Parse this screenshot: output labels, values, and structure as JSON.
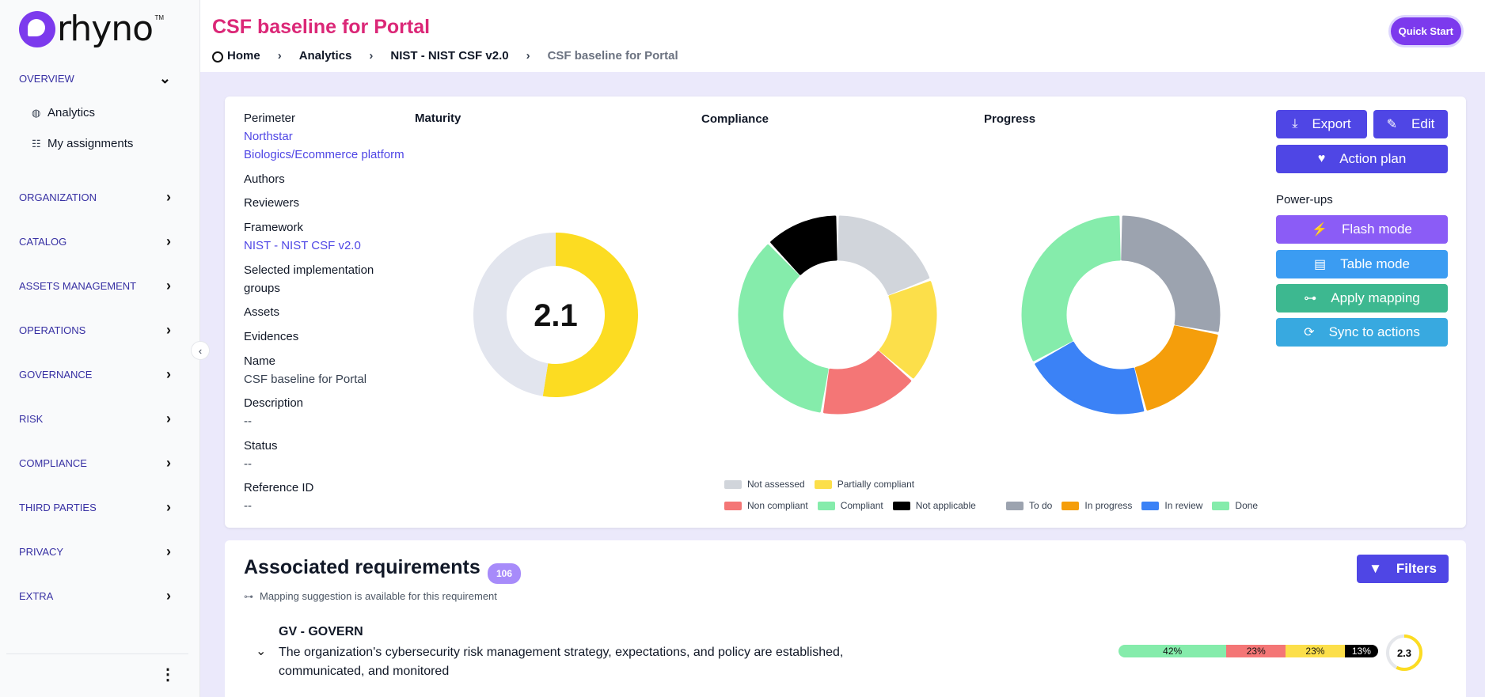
{
  "app": {
    "logo_text": "rhyno",
    "logo_tm": "TM"
  },
  "sidebar": {
    "overview_label": "OVERVIEW",
    "sub_items": [
      {
        "label": "Analytics",
        "icon": "globe-icon"
      },
      {
        "label": "My assignments",
        "icon": "list-check-icon"
      }
    ],
    "sections": [
      "ORGANIZATION",
      "CATALOG",
      "ASSETS MANAGEMENT",
      "OPERATIONS",
      "GOVERNANCE",
      "RISK",
      "COMPLIANCE",
      "THIRD PARTIES",
      "PRIVACY",
      "EXTRA"
    ]
  },
  "header": {
    "title": "CSF baseline for Portal",
    "breadcrumb": [
      "Home",
      "Analytics",
      "NIST - NIST CSF v2.0",
      "CSF baseline for Portal"
    ],
    "quick_start": "Quick Start"
  },
  "details": {
    "perimeter_label": "Perimeter",
    "perimeter_value_line1": "Northstar",
    "perimeter_value_line2": "Biologics/Ecommerce platform",
    "authors_label": "Authors",
    "reviewers_label": "Reviewers",
    "framework_label": "Framework",
    "framework_value": "NIST - NIST CSF v2.0",
    "groups_label_line1": "Selected implementation",
    "groups_label_line2": "groups",
    "assets_label": "Assets",
    "evidences_label": "Evidences",
    "name_label": "Name",
    "name_value": "CSF baseline for Portal",
    "description_label": "Description",
    "description_value": "--",
    "status_label": "Status",
    "status_value": "--",
    "refid_label": "Reference ID",
    "refid_value": "--"
  },
  "charts": {
    "maturity_title": "Maturity",
    "compliance_title": "Compliance",
    "progress_title": "Progress"
  },
  "chart_data": [
    {
      "type": "pie",
      "title": "Maturity",
      "center_label": "2.1",
      "slices": [
        {
          "name": "maturity",
          "value": 2.1,
          "color": "#fcdc22"
        },
        {
          "name": "remaining",
          "value": 1.9,
          "color": "#e2e5ee"
        }
      ]
    },
    {
      "type": "pie",
      "title": "Compliance",
      "slices": [
        {
          "name": "Not assessed",
          "value": 19,
          "color": "#d1d5db"
        },
        {
          "name": "Partially compliant",
          "value": 17,
          "color": "#fcdf4a"
        },
        {
          "name": "Non compliant",
          "value": 16,
          "color": "#f47676"
        },
        {
          "name": "Compliant",
          "value": 35,
          "color": "#85ecab"
        },
        {
          "name": "Not applicable",
          "value": 12,
          "color": "#000000"
        }
      ]
    },
    {
      "type": "pie",
      "title": "Progress",
      "slices": [
        {
          "name": "To do",
          "value": 28,
          "color": "#9ca3af"
        },
        {
          "name": "In progress",
          "value": 18,
          "color": "#f59e0b"
        },
        {
          "name": "In review",
          "value": 21,
          "color": "#3b82f6"
        },
        {
          "name": "Done",
          "value": 33,
          "color": "#85ecab"
        }
      ]
    }
  ],
  "legends": {
    "compliance_row1": [
      {
        "label": "Not assessed",
        "color": "#d1d5db"
      },
      {
        "label": "Partially compliant",
        "color": "#fcdf4a"
      }
    ],
    "compliance_row2": [
      {
        "label": "Non compliant",
        "color": "#f47676"
      },
      {
        "label": "Compliant",
        "color": "#85ecab"
      },
      {
        "label": "Not applicable",
        "color": "#000000"
      }
    ],
    "progress": [
      {
        "label": "To do",
        "color": "#9ca3af"
      },
      {
        "label": "In progress",
        "color": "#f59e0b"
      },
      {
        "label": "In review",
        "color": "#3b82f6"
      },
      {
        "label": "Done",
        "color": "#85ecab"
      }
    ]
  },
  "actions": {
    "export": "Export",
    "edit": "Edit",
    "action_plan": "Action plan",
    "powerups_label": "Power-ups",
    "flash_mode": "Flash mode",
    "table_mode": "Table mode",
    "apply_mapping": "Apply mapping",
    "sync_to_actions": "Sync to actions"
  },
  "requirements": {
    "title": "Associated requirements",
    "count": "106",
    "mapping_note": "Mapping suggestion is available for this requirement",
    "filters": "Filters",
    "first_group": {
      "title": "GV - GOVERN",
      "description": "The organization's cybersecurity risk management strategy, expectations, and policy are established, communicated, and monitored",
      "bar": [
        {
          "label": "42%",
          "value": 42,
          "color": "#85ecab"
        },
        {
          "label": "23%",
          "value": 23,
          "color": "#f47676"
        },
        {
          "label": "23%",
          "value": 23,
          "color": "#fcdf4a"
        },
        {
          "label": "13%",
          "value": 13,
          "color": "#000000"
        }
      ],
      "score": "2.3",
      "score_value": 2.3,
      "score_max": 4
    }
  },
  "colors": {
    "accent": "#4f46e5",
    "title": "#db2777",
    "purple": "#7c3aed"
  }
}
